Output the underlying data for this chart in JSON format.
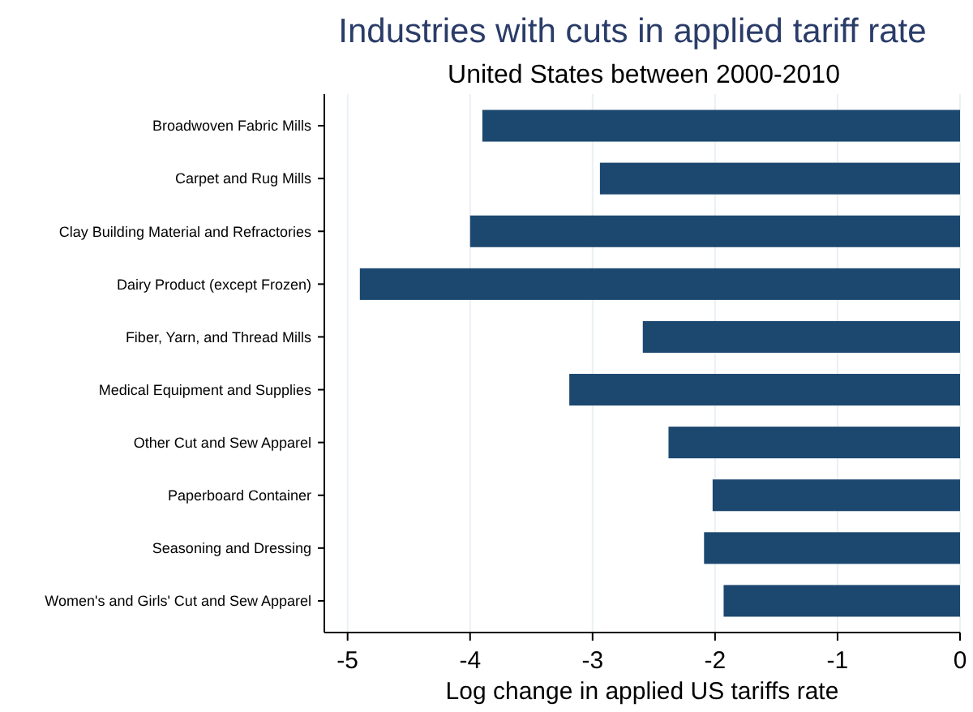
{
  "chart_data": {
    "type": "bar",
    "orientation": "horizontal",
    "title": "Industries with cuts in applied tariff rate",
    "subtitle": "United States between 2000-2010",
    "xlabel": "Log change in applied US tariffs rate",
    "categories": [
      "Broadwoven Fabric Mills",
      "Carpet and Rug Mills",
      "Clay Building Material and Refractories",
      "Dairy Product (except Frozen)",
      "Fiber, Yarn, and Thread Mills",
      "Medical Equipment and Supplies",
      "Other Cut and Sew Apparel",
      "Paperboard Container",
      "Seasoning and Dressing",
      "Women's and Girls' Cut and Sew Apparel"
    ],
    "values": [
      -3.9,
      -2.94,
      -4.0,
      -4.9,
      -2.59,
      -3.19,
      -2.38,
      -2.02,
      -2.09,
      -1.93
    ],
    "color": "#1c4870",
    "xlim": [
      -5.19,
      0
    ],
    "xticks": [
      -5,
      -4,
      -3,
      -2,
      -1,
      0
    ],
    "grid": "x"
  }
}
